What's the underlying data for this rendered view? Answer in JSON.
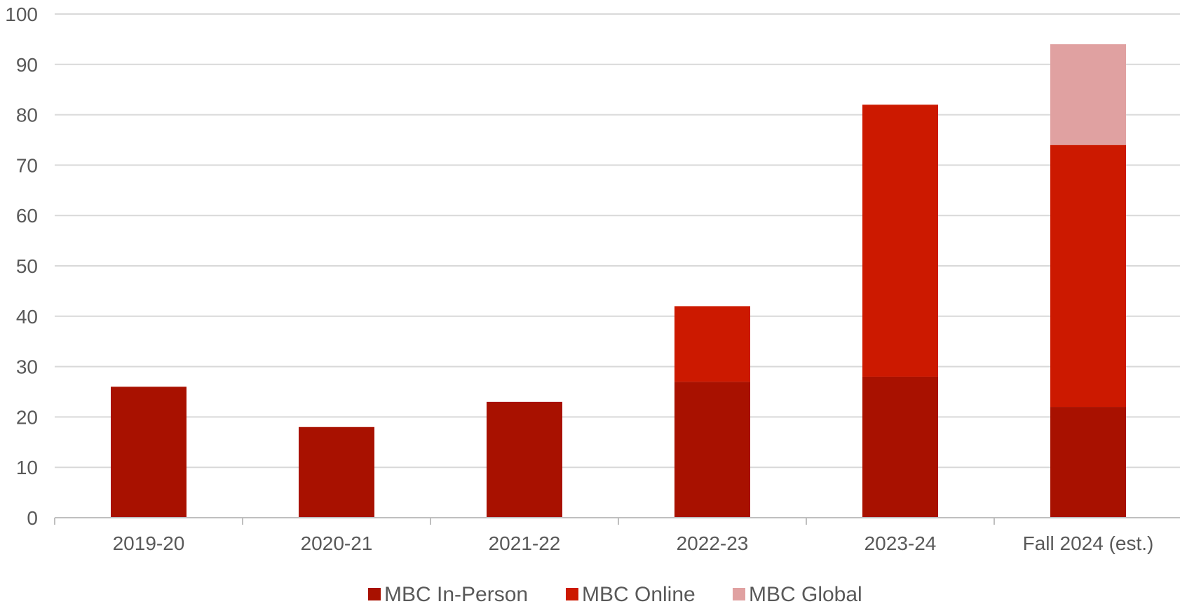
{
  "chart_data": {
    "type": "bar",
    "stacked": true,
    "categories": [
      "2019-20",
      "2020-21",
      "2021-22",
      "2022-23",
      "2023-24",
      "Fall 2024 (est.)"
    ],
    "series": [
      {
        "name": "MBC In-Person",
        "values": [
          26,
          18,
          23,
          27,
          28,
          22
        ],
        "color": "#A81100"
      },
      {
        "name": "MBC Online",
        "values": [
          0,
          0,
          0,
          15,
          54,
          52
        ],
        "color": "#CC1900"
      },
      {
        "name": "MBC Global",
        "values": [
          0,
          0,
          0,
          0,
          0,
          20
        ],
        "color": "#E0A1A1"
      }
    ],
    "ylim": [
      0,
      100
    ],
    "yticks": [
      0,
      10,
      20,
      30,
      40,
      50,
      60,
      70,
      80,
      90,
      100
    ],
    "grid": true,
    "legend": "bottom-center",
    "title": "",
    "xlabel": "",
    "ylabel": ""
  },
  "colors": {
    "gridline": "#D9D9D9",
    "axis": "#BFBFBF",
    "text": "#595959"
  }
}
